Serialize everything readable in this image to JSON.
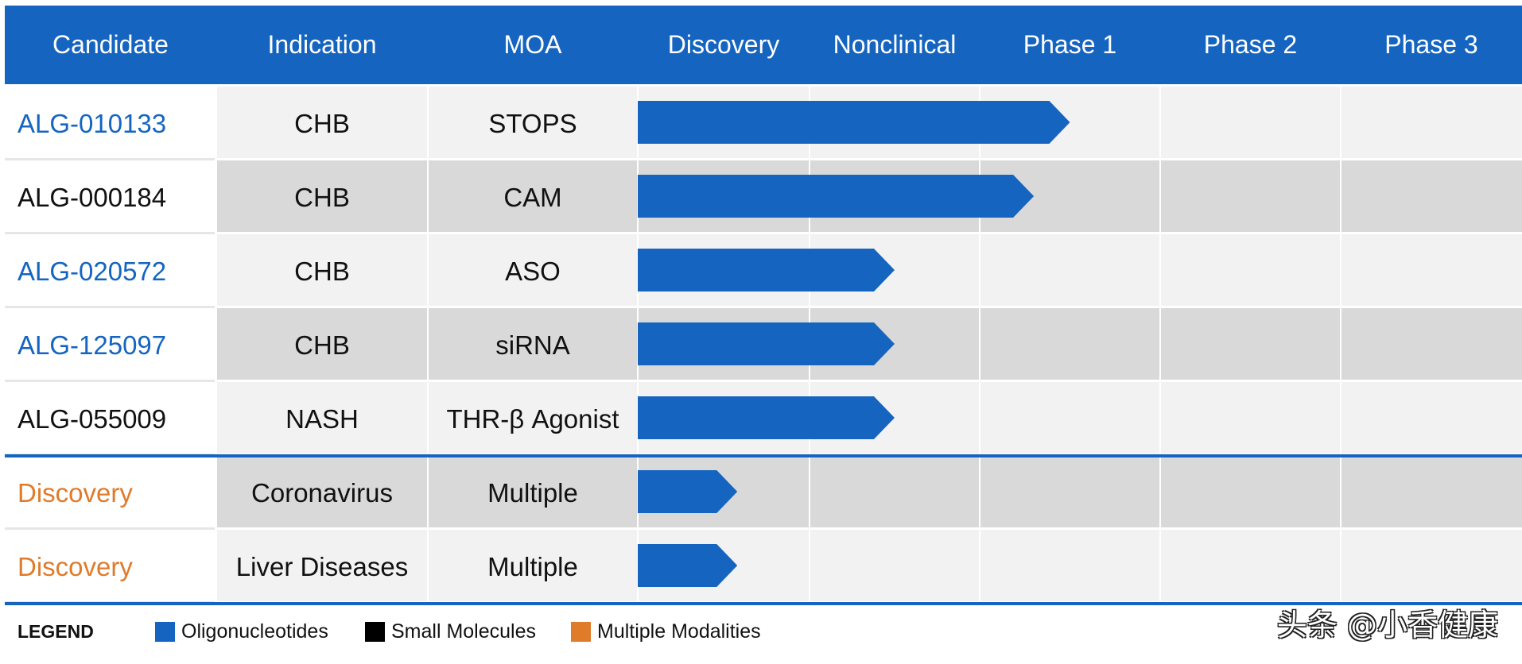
{
  "chart_data": {
    "type": "bar",
    "columns": [
      "Candidate",
      "Indication",
      "MOA",
      "Discovery",
      "Nonclinical",
      "Phase 1",
      "Phase 2",
      "Phase 3"
    ],
    "stages": [
      "Discovery",
      "Nonclinical",
      "Phase 1",
      "Phase 2",
      "Phase 3"
    ],
    "rows": [
      {
        "candidate": "ALG-010133",
        "indication": "CHB",
        "moa": "STOPS",
        "progress": 2.5,
        "modality": "Oligonucleotides"
      },
      {
        "candidate": "ALG-000184",
        "indication": "CHB",
        "moa": "CAM",
        "progress": 2.3,
        "modality": "Small Molecules"
      },
      {
        "candidate": "ALG-020572",
        "indication": "CHB",
        "moa": "ASO",
        "progress": 1.5,
        "modality": "Oligonucleotides"
      },
      {
        "candidate": "ALG-125097",
        "indication": "CHB",
        "moa": "siRNA",
        "progress": 1.5,
        "modality": "Oligonucleotides"
      },
      {
        "candidate": "ALG-055009",
        "indication": "NASH",
        "moa": "THR-β Agonist",
        "progress": 1.5,
        "modality": "Small Molecules"
      },
      {
        "candidate": "Discovery",
        "indication": "Coronavirus",
        "moa": "Multiple",
        "progress": 0.58,
        "modality": "Multiple Modalities"
      },
      {
        "candidate": "Discovery",
        "indication": "Liver Diseases",
        "moa": "Multiple",
        "progress": 0.58,
        "modality": "Multiple Modalities"
      }
    ],
    "bar_color": "#1565c0",
    "legend": {
      "title": "LEGEND",
      "entries": [
        {
          "label": "Oligonucleotides",
          "color": "#1565c0"
        },
        {
          "label": "Small Molecules",
          "color": "#000000"
        },
        {
          "label": "Multiple Modalities",
          "color": "#e07b2a"
        }
      ]
    }
  },
  "watermark": "头条 @小香健康",
  "colors": {
    "header_bg": "#1565c0",
    "row_light": "#f2f2f2",
    "row_dark": "#d9d9d9",
    "text_black": "#111111"
  }
}
